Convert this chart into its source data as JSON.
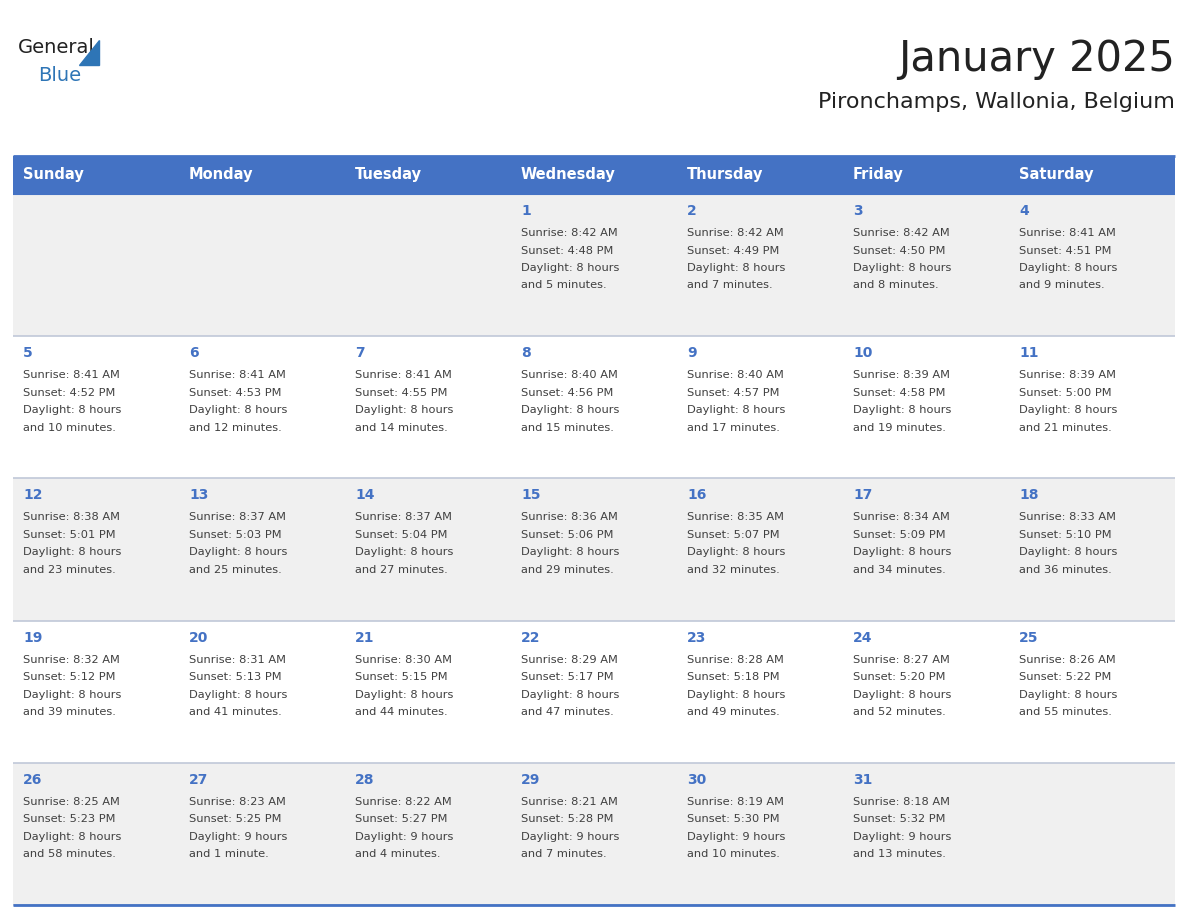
{
  "title": "January 2025",
  "subtitle": "Pironchamps, Wallonia, Belgium",
  "days_of_week": [
    "Sunday",
    "Monday",
    "Tuesday",
    "Wednesday",
    "Thursday",
    "Friday",
    "Saturday"
  ],
  "header_bg_color": "#4472C4",
  "header_text_color": "#FFFFFF",
  "cell_bg_light": "#F0F0F0",
  "cell_bg_white": "#FFFFFF",
  "cell_border_color": "#4472C4",
  "cell_border_thin": "#C0C8D8",
  "day_num_color": "#4472C4",
  "text_color": "#404040",
  "title_color": "#222222",
  "logo_general_color": "#222222",
  "logo_blue_color": "#2E75B6",
  "weeks": [
    {
      "bg": "light",
      "days": [
        {
          "date": null,
          "sunrise": null,
          "sunset": null,
          "daylight": null
        },
        {
          "date": null,
          "sunrise": null,
          "sunset": null,
          "daylight": null
        },
        {
          "date": null,
          "sunrise": null,
          "sunset": null,
          "daylight": null
        },
        {
          "date": 1,
          "sunrise": "8:42 AM",
          "sunset": "4:48 PM",
          "daylight": "8 hours\nand 5 minutes."
        },
        {
          "date": 2,
          "sunrise": "8:42 AM",
          "sunset": "4:49 PM",
          "daylight": "8 hours\nand 7 minutes."
        },
        {
          "date": 3,
          "sunrise": "8:42 AM",
          "sunset": "4:50 PM",
          "daylight": "8 hours\nand 8 minutes."
        },
        {
          "date": 4,
          "sunrise": "8:41 AM",
          "sunset": "4:51 PM",
          "daylight": "8 hours\nand 9 minutes."
        }
      ]
    },
    {
      "bg": "white",
      "days": [
        {
          "date": 5,
          "sunrise": "8:41 AM",
          "sunset": "4:52 PM",
          "daylight": "8 hours\nand 10 minutes."
        },
        {
          "date": 6,
          "sunrise": "8:41 AM",
          "sunset": "4:53 PM",
          "daylight": "8 hours\nand 12 minutes."
        },
        {
          "date": 7,
          "sunrise": "8:41 AM",
          "sunset": "4:55 PM",
          "daylight": "8 hours\nand 14 minutes."
        },
        {
          "date": 8,
          "sunrise": "8:40 AM",
          "sunset": "4:56 PM",
          "daylight": "8 hours\nand 15 minutes."
        },
        {
          "date": 9,
          "sunrise": "8:40 AM",
          "sunset": "4:57 PM",
          "daylight": "8 hours\nand 17 minutes."
        },
        {
          "date": 10,
          "sunrise": "8:39 AM",
          "sunset": "4:58 PM",
          "daylight": "8 hours\nand 19 minutes."
        },
        {
          "date": 11,
          "sunrise": "8:39 AM",
          "sunset": "5:00 PM",
          "daylight": "8 hours\nand 21 minutes."
        }
      ]
    },
    {
      "bg": "light",
      "days": [
        {
          "date": 12,
          "sunrise": "8:38 AM",
          "sunset": "5:01 PM",
          "daylight": "8 hours\nand 23 minutes."
        },
        {
          "date": 13,
          "sunrise": "8:37 AM",
          "sunset": "5:03 PM",
          "daylight": "8 hours\nand 25 minutes."
        },
        {
          "date": 14,
          "sunrise": "8:37 AM",
          "sunset": "5:04 PM",
          "daylight": "8 hours\nand 27 minutes."
        },
        {
          "date": 15,
          "sunrise": "8:36 AM",
          "sunset": "5:06 PM",
          "daylight": "8 hours\nand 29 minutes."
        },
        {
          "date": 16,
          "sunrise": "8:35 AM",
          "sunset": "5:07 PM",
          "daylight": "8 hours\nand 32 minutes."
        },
        {
          "date": 17,
          "sunrise": "8:34 AM",
          "sunset": "5:09 PM",
          "daylight": "8 hours\nand 34 minutes."
        },
        {
          "date": 18,
          "sunrise": "8:33 AM",
          "sunset": "5:10 PM",
          "daylight": "8 hours\nand 36 minutes."
        }
      ]
    },
    {
      "bg": "white",
      "days": [
        {
          "date": 19,
          "sunrise": "8:32 AM",
          "sunset": "5:12 PM",
          "daylight": "8 hours\nand 39 minutes."
        },
        {
          "date": 20,
          "sunrise": "8:31 AM",
          "sunset": "5:13 PM",
          "daylight": "8 hours\nand 41 minutes."
        },
        {
          "date": 21,
          "sunrise": "8:30 AM",
          "sunset": "5:15 PM",
          "daylight": "8 hours\nand 44 minutes."
        },
        {
          "date": 22,
          "sunrise": "8:29 AM",
          "sunset": "5:17 PM",
          "daylight": "8 hours\nand 47 minutes."
        },
        {
          "date": 23,
          "sunrise": "8:28 AM",
          "sunset": "5:18 PM",
          "daylight": "8 hours\nand 49 minutes."
        },
        {
          "date": 24,
          "sunrise": "8:27 AM",
          "sunset": "5:20 PM",
          "daylight": "8 hours\nand 52 minutes."
        },
        {
          "date": 25,
          "sunrise": "8:26 AM",
          "sunset": "5:22 PM",
          "daylight": "8 hours\nand 55 minutes."
        }
      ]
    },
    {
      "bg": "light",
      "days": [
        {
          "date": 26,
          "sunrise": "8:25 AM",
          "sunset": "5:23 PM",
          "daylight": "8 hours\nand 58 minutes."
        },
        {
          "date": 27,
          "sunrise": "8:23 AM",
          "sunset": "5:25 PM",
          "daylight": "9 hours\nand 1 minute."
        },
        {
          "date": 28,
          "sunrise": "8:22 AM",
          "sunset": "5:27 PM",
          "daylight": "9 hours\nand 4 minutes."
        },
        {
          "date": 29,
          "sunrise": "8:21 AM",
          "sunset": "5:28 PM",
          "daylight": "9 hours\nand 7 minutes."
        },
        {
          "date": 30,
          "sunrise": "8:19 AM",
          "sunset": "5:30 PM",
          "daylight": "9 hours\nand 10 minutes."
        },
        {
          "date": 31,
          "sunrise": "8:18 AM",
          "sunset": "5:32 PM",
          "daylight": "9 hours\nand 13 minutes."
        },
        {
          "date": null,
          "sunrise": null,
          "sunset": null,
          "daylight": null
        }
      ]
    }
  ]
}
